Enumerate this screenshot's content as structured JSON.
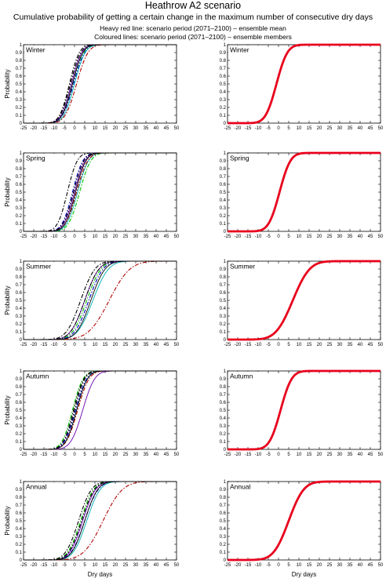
{
  "figure": {
    "title": "Heathrow A2 scenario",
    "subtitle": "Cumulative probability of getting a certain change in the maximum number of consecutive dry days",
    "notes": [
      "Heavy red line: scenario period (2071–2100) – ensemble mean",
      "Coloured lines: scenario period (2071–2100) – ensemble members"
    ],
    "xlabel": "Dry days",
    "ylabel": "Probability",
    "xticks": [
      -25,
      -20,
      -15,
      -10,
      -5,
      0,
      5,
      10,
      15,
      20,
      25,
      30,
      35,
      40,
      45,
      50
    ],
    "yticks": [
      0,
      0.1,
      0.2,
      0.3,
      0.4,
      0.5,
      0.6,
      0.7,
      0.8,
      0.9,
      1
    ],
    "colors": {
      "mean": "#e8001c",
      "axis": "#000000"
    }
  },
  "chart_data": [
    {
      "type": "line",
      "panel": "ensemble-members",
      "season": "Winter",
      "xlim": [
        -25,
        50
      ],
      "ylim": [
        0,
        1
      ],
      "series": [
        {
          "style": "dashdot",
          "color": "#000000",
          "mu": -2,
          "s": 4.0
        },
        {
          "style": "dashdot",
          "color": "#00c000",
          "mu": -1,
          "s": 4.2
        },
        {
          "style": "solid",
          "color": "#6a00b0",
          "mu": -1.5,
          "s": 4.0
        },
        {
          "style": "dashdot",
          "color": "#0000c0",
          "mu": -0.5,
          "s": 4.3
        },
        {
          "style": "solid",
          "color": "#00b0b0",
          "mu": 0,
          "s": 4.1
        },
        {
          "style": "dashdot",
          "color": "#000000",
          "mu": -2.5,
          "s": 3.8
        },
        {
          "style": "dashdot",
          "color": "#b00000",
          "mu": 1,
          "s": 4.4
        },
        {
          "style": "solid",
          "color": "#000000",
          "mu": -1,
          "s": 4.0
        }
      ]
    },
    {
      "type": "line",
      "panel": "ensemble-mean",
      "season": "Winter",
      "xlim": [
        -25,
        50
      ],
      "ylim": [
        0,
        1
      ],
      "series": [
        {
          "style": "mean",
          "color": "#e8001c",
          "mu": -1,
          "s": 4.2
        }
      ]
    },
    {
      "type": "line",
      "panel": "ensemble-members",
      "season": "Spring",
      "xlim": [
        -25,
        50
      ],
      "ylim": [
        0,
        1
      ],
      "series": [
        {
          "style": "dashdot",
          "color": "#000000",
          "mu": -3.5,
          "s": 3.8
        },
        {
          "style": "dashdot",
          "color": "#00c000",
          "mu": 2.5,
          "s": 4.3
        },
        {
          "style": "solid",
          "color": "#6a00b0",
          "mu": 0,
          "s": 4.1
        },
        {
          "style": "dashdot",
          "color": "#0000c0",
          "mu": -1,
          "s": 4.0
        },
        {
          "style": "solid",
          "color": "#00b0b0",
          "mu": 1.5,
          "s": 4.2
        },
        {
          "style": "dashdot",
          "color": "#000000",
          "mu": -0.5,
          "s": 4.0
        },
        {
          "style": "dashdot",
          "color": "#b00000",
          "mu": 1,
          "s": 4.3
        },
        {
          "style": "solid",
          "color": "#000000",
          "mu": 0.5,
          "s": 4.0
        }
      ]
    },
    {
      "type": "line",
      "panel": "ensemble-mean",
      "season": "Spring",
      "xlim": [
        -25,
        50
      ],
      "ylim": [
        0,
        1
      ],
      "series": [
        {
          "style": "mean",
          "color": "#e8001c",
          "mu": 0.5,
          "s": 4.2
        }
      ]
    },
    {
      "type": "line",
      "panel": "ensemble-members",
      "season": "Summer",
      "xlim": [
        -25,
        50
      ],
      "ylim": [
        0,
        1
      ],
      "series": [
        {
          "style": "dashdot",
          "color": "#000000",
          "mu": 3,
          "s": 5.5
        },
        {
          "style": "dashdot",
          "color": "#00c000",
          "mu": 6,
          "s": 5.5
        },
        {
          "style": "solid",
          "color": "#6a00b0",
          "mu": 5,
          "s": 5.5
        },
        {
          "style": "dashdot",
          "color": "#0000c0",
          "mu": 7,
          "s": 5.5
        },
        {
          "style": "solid",
          "color": "#00b0b0",
          "mu": 9,
          "s": 6.0
        },
        {
          "style": "dashdot",
          "color": "#000000",
          "mu": 5,
          "s": 5.5
        },
        {
          "style": "dashdot",
          "color": "#b00000",
          "mu": 17,
          "s": 8.0
        },
        {
          "style": "solid",
          "color": "#000000",
          "mu": 8,
          "s": 5.5
        }
      ]
    },
    {
      "type": "line",
      "panel": "ensemble-mean",
      "season": "Summer",
      "xlim": [
        -25,
        50
      ],
      "ylim": [
        0,
        1
      ],
      "series": [
        {
          "style": "mean",
          "color": "#e8001c",
          "mu": 7,
          "s": 6.5
        }
      ]
    },
    {
      "type": "line",
      "panel": "ensemble-members",
      "season": "Autumn",
      "xlim": [
        -25,
        50
      ],
      "ylim": [
        0,
        1
      ],
      "series": [
        {
          "style": "dashdot",
          "color": "#000000",
          "mu": 0,
          "s": 4.0
        },
        {
          "style": "dashdot",
          "color": "#00c000",
          "mu": -1,
          "s": 4.1
        },
        {
          "style": "solid",
          "color": "#6a00b0",
          "mu": 4,
          "s": 4.6
        },
        {
          "style": "dashdot",
          "color": "#0000c0",
          "mu": 0.5,
          "s": 4.3
        },
        {
          "style": "solid",
          "color": "#00b0b0",
          "mu": 1,
          "s": 4.2
        },
        {
          "style": "dashdot",
          "color": "#000000",
          "mu": -0.5,
          "s": 4.0
        },
        {
          "style": "dashdot",
          "color": "#b00000",
          "mu": 1.5,
          "s": 4.4
        },
        {
          "style": "solid",
          "color": "#000000",
          "mu": 1,
          "s": 4.2
        }
      ]
    },
    {
      "type": "line",
      "panel": "ensemble-mean",
      "season": "Autumn",
      "xlim": [
        -25,
        50
      ],
      "ylim": [
        0,
        1
      ],
      "series": [
        {
          "style": "mean",
          "color": "#e8001c",
          "mu": 1,
          "s": 4.3
        }
      ]
    },
    {
      "type": "line",
      "panel": "ensemble-members",
      "season": "Annual",
      "xlim": [
        -25,
        50
      ],
      "ylim": [
        0,
        1
      ],
      "series": [
        {
          "style": "dashdot",
          "color": "#000000",
          "mu": 2,
          "s": 5.0
        },
        {
          "style": "dashdot",
          "color": "#00c000",
          "mu": 3,
          "s": 5.0
        },
        {
          "style": "solid",
          "color": "#6a00b0",
          "mu": 4,
          "s": 5.0
        },
        {
          "style": "dashdot",
          "color": "#0000c0",
          "mu": 5,
          "s": 5.2
        },
        {
          "style": "solid",
          "color": "#00b0b0",
          "mu": 6,
          "s": 5.2
        },
        {
          "style": "dashdot",
          "color": "#000000",
          "mu": 3.5,
          "s": 5.0
        },
        {
          "style": "dashdot",
          "color": "#b00000",
          "mu": 14,
          "s": 7.5
        },
        {
          "style": "solid",
          "color": "#000000",
          "mu": 5,
          "s": 5.0
        }
      ]
    },
    {
      "type": "line",
      "panel": "ensemble-mean",
      "season": "Annual",
      "xlim": [
        -25,
        50
      ],
      "ylim": [
        0,
        1
      ],
      "series": [
        {
          "style": "mean",
          "color": "#e8001c",
          "mu": 5,
          "s": 5.8
        }
      ]
    }
  ]
}
